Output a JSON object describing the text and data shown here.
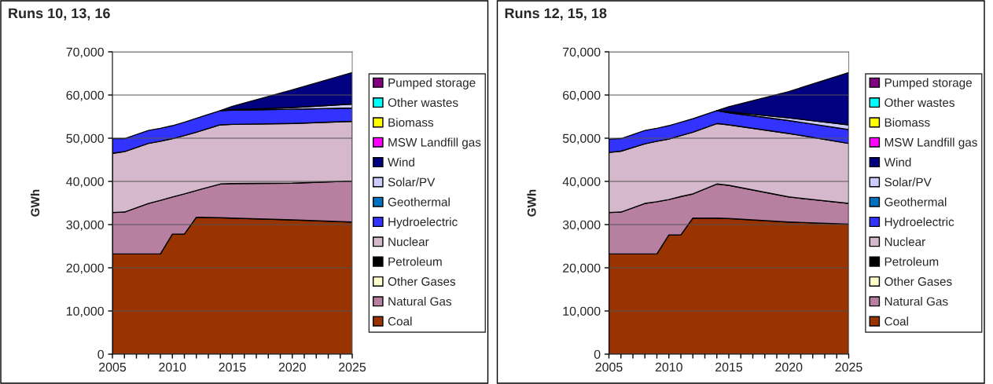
{
  "chart_data": [
    {
      "type": "area",
      "stacked": true,
      "title": "Runs 10, 13, 16",
      "ylabel": "GWh",
      "legend": "right",
      "grid": "y",
      "x": [
        2005,
        2006,
        2008,
        2009,
        2010,
        2011,
        2012,
        2014,
        2015,
        2020,
        2025
      ],
      "xlim": [
        2005,
        2025
      ],
      "xticks": [
        2005,
        {
          "value": 2006,
          "label": null
        },
        {
          "value": 2007,
          "label": null
        },
        {
          "value": 2008,
          "label": null
        },
        {
          "value": 2009,
          "label": null
        },
        2010,
        {
          "value": 2011,
          "label": null
        },
        {
          "value": 2012,
          "label": null
        },
        {
          "value": 2013,
          "label": null
        },
        {
          "value": 2014,
          "label": null
        },
        2015,
        {
          "value": 2016,
          "label": null
        },
        {
          "value": 2017,
          "label": null
        },
        {
          "value": 2018,
          "label": null
        },
        {
          "value": 2019,
          "label": null
        },
        2020,
        {
          "value": 2021,
          "label": null
        },
        {
          "value": 2022,
          "label": null
        },
        {
          "value": 2023,
          "label": null
        },
        {
          "value": 2024,
          "label": null
        },
        2025
      ],
      "ylim": [
        0,
        70000
      ],
      "yticks": [
        0,
        {
          "value": 10000,
          "label": "10,000"
        },
        {
          "value": 20000,
          "label": "20,000"
        },
        {
          "value": 30000,
          "label": "30,000"
        },
        {
          "value": 40000,
          "label": "40,000"
        },
        {
          "value": 50000,
          "label": "50,000"
        },
        {
          "value": 60000,
          "label": "60,000"
        },
        {
          "value": 70000,
          "label": "70,000"
        }
      ],
      "series": [
        {
          "name": "Coal",
          "color": "#993300",
          "values": [
            23200,
            23200,
            23200,
            23200,
            27800,
            27800,
            31700,
            31600,
            31500,
            31100,
            30600
          ]
        },
        {
          "name": "Natural Gas",
          "color": "#b77fa0",
          "values": [
            9600,
            9700,
            11700,
            12400,
            8600,
            9300,
            6200,
            7800,
            8000,
            8500,
            9500
          ]
        },
        {
          "name": "Other Gases",
          "color": "#ffffcc",
          "values": [
            null,
            null,
            null,
            null,
            null,
            null,
            null,
            null,
            null,
            null,
            null
          ]
        },
        {
          "name": "Petroleum",
          "color": "#000000",
          "values": [
            null,
            null,
            null,
            null,
            null,
            null,
            null,
            null,
            null,
            null,
            null
          ]
        },
        {
          "name": "Nuclear",
          "color": "#d6b8cc",
          "values": [
            13700,
            14000,
            13900,
            13700,
            13500,
            13500,
            13500,
            13700,
            13700,
            13800,
            13800
          ]
        },
        {
          "name": "Hydroelectric",
          "color": "#3333ff",
          "values": [
            3400,
            3000,
            3000,
            3000,
            3000,
            3100,
            3200,
            3300,
            3300,
            3300,
            3100
          ]
        },
        {
          "name": "Geothermal",
          "color": "#0070c0",
          "values": [
            null,
            null,
            null,
            null,
            null,
            null,
            null,
            null,
            null,
            null,
            null
          ]
        },
        {
          "name": "Solar/PV",
          "color": "#ccccff",
          "values": [
            null,
            null,
            null,
            null,
            null,
            null,
            null,
            0,
            100,
            400,
            900
          ]
        },
        {
          "name": "Wind",
          "color": "#000080",
          "values": [
            null,
            null,
            null,
            null,
            null,
            null,
            null,
            0,
            800,
            4100,
            7300
          ]
        },
        {
          "name": "MSW Landfill gas",
          "color": "#ff00ff",
          "values": [
            null,
            null,
            null,
            null,
            null,
            null,
            null,
            null,
            null,
            null,
            null
          ]
        },
        {
          "name": "Biomass",
          "color": "#ffff00",
          "values": [
            null,
            null,
            null,
            null,
            null,
            null,
            null,
            null,
            null,
            null,
            null
          ]
        },
        {
          "name": "Other wastes",
          "color": "#00ffff",
          "values": [
            null,
            null,
            null,
            null,
            null,
            null,
            null,
            null,
            null,
            null,
            null
          ]
        },
        {
          "name": "Pumped storage",
          "color": "#800080",
          "values": [
            null,
            null,
            null,
            null,
            null,
            null,
            null,
            null,
            null,
            null,
            null
          ]
        }
      ]
    },
    {
      "type": "area",
      "stacked": true,
      "title": "Runs 12, 15, 18",
      "ylabel": "GWh",
      "legend": "right",
      "grid": "y",
      "x": [
        2005,
        2006,
        2008,
        2009,
        2010,
        2011,
        2012,
        2014,
        2015,
        2020,
        2025
      ],
      "xlim": [
        2005,
        2025
      ],
      "xticks": [
        2005,
        {
          "value": 2006,
          "label": null
        },
        {
          "value": 2007,
          "label": null
        },
        {
          "value": 2008,
          "label": null
        },
        {
          "value": 2009,
          "label": null
        },
        2010,
        {
          "value": 2011,
          "label": null
        },
        {
          "value": 2012,
          "label": null
        },
        {
          "value": 2013,
          "label": null
        },
        {
          "value": 2014,
          "label": null
        },
        2015,
        {
          "value": 2016,
          "label": null
        },
        {
          "value": 2017,
          "label": null
        },
        {
          "value": 2018,
          "label": null
        },
        {
          "value": 2019,
          "label": null
        },
        2020,
        {
          "value": 2021,
          "label": null
        },
        {
          "value": 2022,
          "label": null
        },
        {
          "value": 2023,
          "label": null
        },
        {
          "value": 2024,
          "label": null
        },
        2025
      ],
      "ylim": [
        0,
        70000
      ],
      "yticks": [
        0,
        {
          "value": 10000,
          "label": "10,000"
        },
        {
          "value": 20000,
          "label": "20,000"
        },
        {
          "value": 30000,
          "label": "30,000"
        },
        {
          "value": 40000,
          "label": "40,000"
        },
        {
          "value": 50000,
          "label": "50,000"
        },
        {
          "value": 60000,
          "label": "60,000"
        },
        {
          "value": 70000,
          "label": "70,000"
        }
      ],
      "series": [
        {
          "name": "Coal",
          "color": "#993300",
          "values": [
            23200,
            23200,
            23200,
            23200,
            27600,
            27600,
            31500,
            31500,
            31400,
            30600,
            30100
          ]
        },
        {
          "name": "Natural Gas",
          "color": "#b77fa0",
          "values": [
            9600,
            9700,
            11700,
            12100,
            8200,
            8900,
            5600,
            7900,
            7700,
            5800,
            4800
          ]
        },
        {
          "name": "Other Gases",
          "color": "#ffffcc",
          "values": [
            null,
            null,
            null,
            null,
            null,
            null,
            null,
            null,
            null,
            null,
            null
          ]
        },
        {
          "name": "Petroleum",
          "color": "#000000",
          "values": [
            null,
            null,
            null,
            null,
            null,
            null,
            null,
            null,
            null,
            null,
            null
          ]
        },
        {
          "name": "Nuclear",
          "color": "#d6b8cc",
          "values": [
            13900,
            14100,
            13800,
            14000,
            14000,
            14100,
            14300,
            14000,
            14000,
            14700,
            13900
          ]
        },
        {
          "name": "Hydroelectric",
          "color": "#3333ff",
          "values": [
            3100,
            2900,
            3100,
            3000,
            3100,
            3100,
            3100,
            3000,
            2800,
            3000,
            3200
          ]
        },
        {
          "name": "Geothermal",
          "color": "#0070c0",
          "values": [
            null,
            null,
            null,
            null,
            null,
            null,
            null,
            null,
            null,
            null,
            null
          ]
        },
        {
          "name": "Solar/PV",
          "color": "#ccccff",
          "values": [
            null,
            null,
            null,
            null,
            null,
            null,
            null,
            0,
            200,
            600,
            1100
          ]
        },
        {
          "name": "Wind",
          "color": "#000080",
          "values": [
            null,
            null,
            null,
            null,
            null,
            null,
            null,
            0,
            1200,
            6100,
            12100
          ]
        },
        {
          "name": "MSW Landfill gas",
          "color": "#ff00ff",
          "values": [
            null,
            null,
            null,
            null,
            null,
            null,
            null,
            null,
            null,
            null,
            null
          ]
        },
        {
          "name": "Biomass",
          "color": "#ffff00",
          "values": [
            null,
            null,
            null,
            null,
            null,
            null,
            null,
            null,
            null,
            null,
            null
          ]
        },
        {
          "name": "Other wastes",
          "color": "#00ffff",
          "values": [
            null,
            null,
            null,
            null,
            null,
            null,
            null,
            null,
            null,
            null,
            null
          ]
        },
        {
          "name": "Pumped storage",
          "color": "#800080",
          "values": [
            null,
            null,
            null,
            null,
            null,
            null,
            null,
            null,
            null,
            null,
            null
          ]
        }
      ]
    }
  ]
}
